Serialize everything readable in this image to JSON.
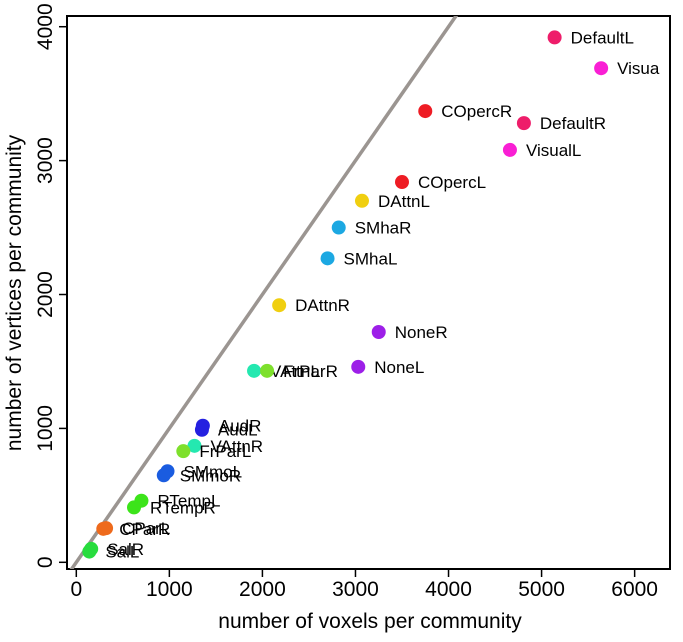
{
  "chart_data": {
    "type": "scatter",
    "title": "",
    "xlabel": "number of voxels per community",
    "ylabel": "number of vertices per community",
    "xlim": [
      -100,
      6380
    ],
    "ylim": [
      -50,
      4080
    ],
    "x_ticks": [
      0,
      1000,
      2000,
      3000,
      4000,
      5000,
      6000
    ],
    "y_ticks": [
      0,
      1000,
      2000,
      3000,
      4000
    ],
    "x_tick_labels": [
      "0",
      "1000",
      "2000",
      "3000",
      "4000",
      "5000",
      "6000"
    ],
    "y_tick_labels": [
      "0",
      "1000",
      "2000",
      "3000",
      "4000"
    ],
    "grid": false,
    "reference_line": {
      "slope": 1.0,
      "intercept": 0,
      "color": "#9b9591"
    },
    "points": [
      {
        "label": "DefaultL",
        "x": 5140,
        "y": 3920,
        "color": "#ee1d6a"
      },
      {
        "label": "Visua",
        "x": 5640,
        "y": 3690,
        "color": "#f91fd4"
      },
      {
        "label": "COpercR",
        "x": 3750,
        "y": 3370,
        "color": "#ee1c24"
      },
      {
        "label": "DefaultR",
        "x": 4810,
        "y": 3280,
        "color": "#ee1d6a"
      },
      {
        "label": "VisualL",
        "x": 4660,
        "y": 3080,
        "color": "#f91fd4"
      },
      {
        "label": "COpercL",
        "x": 3500,
        "y": 2840,
        "color": "#ee1c24"
      },
      {
        "label": "DAttnL",
        "x": 3070,
        "y": 2700,
        "color": "#f0cf10"
      },
      {
        "label": "SMhaR",
        "x": 2820,
        "y": 2500,
        "color": "#1ca8e2"
      },
      {
        "label": "SMhaL",
        "x": 2700,
        "y": 2270,
        "color": "#1ca8e2"
      },
      {
        "label": "DAttnR",
        "x": 2180,
        "y": 1920,
        "color": "#f0cf10"
      },
      {
        "label": "NoneR",
        "x": 3250,
        "y": 1720,
        "color": "#9d1fe8"
      },
      {
        "label": "NoneL",
        "x": 3030,
        "y": 1460,
        "color": "#9d1fe8"
      },
      {
        "label": "VAttnL",
        "x": 1910,
        "y": 1430,
        "color": "#24e8b0"
      },
      {
        "label": "FrParR",
        "x": 2050,
        "y": 1430,
        "color": "#7ee02c"
      },
      {
        "label": "AudR",
        "x": 1360,
        "y": 1020,
        "color": "#2420e0"
      },
      {
        "label": "AudL",
        "x": 1350,
        "y": 990,
        "color": "#2420e0"
      },
      {
        "label": "VAttnR",
        "x": 1270,
        "y": 870,
        "color": "#24e8b0"
      },
      {
        "label": "FrParL",
        "x": 1150,
        "y": 830,
        "color": "#7ee02c"
      },
      {
        "label": "SMmoL",
        "x": 980,
        "y": 680,
        "color": "#1a5ce0"
      },
      {
        "label": "SMmoR",
        "x": 940,
        "y": 650,
        "color": "#1a5ce0"
      },
      {
        "label": "RTempL",
        "x": 700,
        "y": 460,
        "color": "#3ce41a"
      },
      {
        "label": "RTempR",
        "x": 620,
        "y": 410,
        "color": "#3ce41a"
      },
      {
        "label": "CParL",
        "x": 320,
        "y": 255,
        "color": "#ee6a1c"
      },
      {
        "label": "CParR",
        "x": 290,
        "y": 250,
        "color": "#ee6a1c"
      },
      {
        "label": "SalR",
        "x": 160,
        "y": 100,
        "color": "#28dc3e"
      },
      {
        "label": "SalL",
        "x": 140,
        "y": 80,
        "color": "#28dc3e"
      }
    ]
  }
}
